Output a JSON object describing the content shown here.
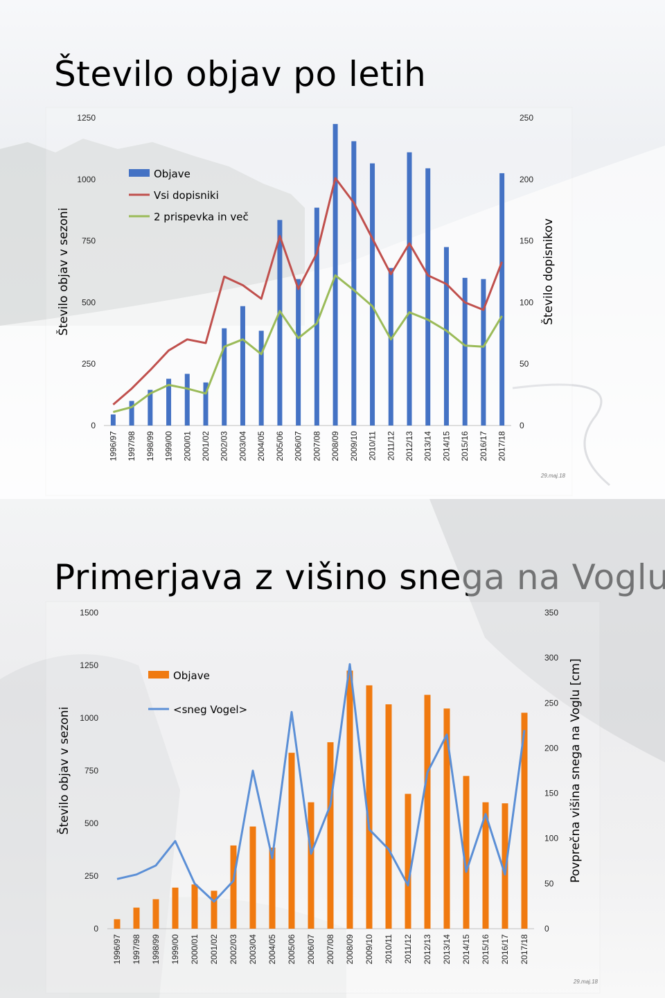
{
  "chart_data": [
    {
      "type": "bar",
      "title": "Število objav po letih",
      "categories": [
        "1996/97",
        "1997/98",
        "1998/99",
        "1999/00",
        "2000/01",
        "2001/02",
        "2002/03",
        "2003/04",
        "2004/05",
        "2005/06",
        "2006/07",
        "2007/08",
        "2008/09",
        "2009/10",
        "2010/11",
        "2011/12",
        "2012/13",
        "2013/14",
        "2014/15",
        "2015/16",
        "2016/17",
        "2017/18"
      ],
      "ylabel": "Število objav v sezoni",
      "y2label": "Število dopisnikov",
      "ylim": [
        0,
        1250
      ],
      "y2lim": [
        0,
        250
      ],
      "yticks": [
        "0",
        "250",
        "500",
        "750",
        "1000",
        "1250"
      ],
      "y2ticks": [
        "0",
        "50",
        "100",
        "150",
        "200",
        "250"
      ],
      "legend_position": "top-left",
      "date_label": "29.maj.18",
      "colors": {
        "bar": "#4472C4",
        "line1": "#C0504D",
        "line2": "#9BBB59"
      },
      "series": [
        {
          "name": "Objave",
          "type": "bar",
          "axis": "left",
          "values": [
            45,
            100,
            145,
            190,
            210,
            175,
            395,
            485,
            385,
            835,
            595,
            885,
            1225,
            1155,
            1065,
            640,
            1110,
            1045,
            725,
            600,
            595,
            1025
          ]
        },
        {
          "name": "Vsi dopisniki",
          "type": "line",
          "axis": "right",
          "values": [
            17,
            30,
            45,
            61,
            70,
            67,
            121,
            114,
            103,
            154,
            111,
            140,
            201,
            181,
            152,
            123,
            148,
            122,
            115,
            100,
            94,
            133
          ]
        },
        {
          "name": "2 prispevka in več",
          "type": "line",
          "axis": "right",
          "values": [
            11,
            15,
            26,
            33,
            30,
            26,
            64,
            70,
            58,
            93,
            71,
            83,
            122,
            110,
            97,
            70,
            92,
            86,
            77,
            65,
            64,
            89
          ]
        }
      ]
    },
    {
      "type": "bar",
      "title": "Primerjava z višino snega na Voglu",
      "categories": [
        "1996/97",
        "1997/98",
        "1998/99",
        "1999/00",
        "2000/01",
        "2001/02",
        "2002/03",
        "2003/04",
        "2004/05",
        "2005/06",
        "2006/07",
        "2007/08",
        "2008/09",
        "2009/10",
        "2010/11",
        "2011/12",
        "2012/13",
        "2013/14",
        "2014/15",
        "2015/16",
        "2016/17",
        "2017/18"
      ],
      "ylabel": "Število objav v sezoni",
      "y2label": "Povprečna višina snega na Voglu [cm]",
      "ylim": [
        0,
        1500
      ],
      "y2lim": [
        0,
        350
      ],
      "yticks": [
        "0",
        "250",
        "500",
        "750",
        "1000",
        "1250",
        "1500"
      ],
      "y2ticks": [
        "0",
        "50",
        "100",
        "150",
        "200",
        "250",
        "300",
        "350"
      ],
      "legend_position": "top-left",
      "date_label": "29.maj.18",
      "colors": {
        "bar": "#F07A10",
        "line1": "#5B8FD6"
      },
      "series": [
        {
          "name": "Objave",
          "type": "bar",
          "axis": "left",
          "values": [
            45,
            100,
            140,
            195,
            210,
            180,
            395,
            485,
            385,
            835,
            600,
            885,
            1225,
            1155,
            1065,
            640,
            1110,
            1045,
            725,
            600,
            595,
            1025
          ]
        },
        {
          "name": "<sneg Vogel>",
          "type": "line",
          "axis": "right",
          "values": [
            55,
            60,
            70,
            97,
            50,
            30,
            53,
            175,
            78,
            240,
            83,
            137,
            293,
            110,
            88,
            48,
            173,
            215,
            63,
            127,
            60,
            220
          ]
        }
      ]
    }
  ]
}
